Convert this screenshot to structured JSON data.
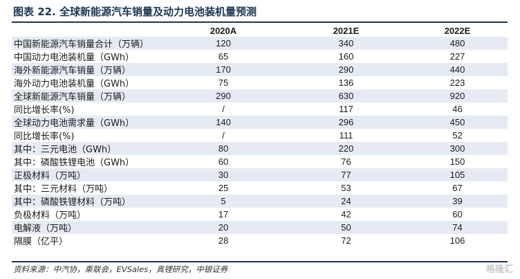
{
  "title": "图表 22. 全球新能源汽车销量及动力电池装机量预测",
  "table": {
    "headers": [
      "",
      "2020A",
      "2021E",
      "2022E"
    ],
    "rows": [
      {
        "label": "中国新能源汽车销量合计（万辆）",
        "values": [
          "120",
          "340",
          "480"
        ]
      },
      {
        "label": "中国动力电池装机量（GWh）",
        "values": [
          "65",
          "160",
          "227"
        ]
      },
      {
        "label": "海外新能源汽车销量（万辆）",
        "values": [
          "170",
          "290",
          "440"
        ]
      },
      {
        "label": "海外动力电池装机量（GWh）",
        "values": [
          "75",
          "136",
          "223"
        ]
      },
      {
        "label": "全球新能源汽车销量（万辆）",
        "values": [
          "290",
          "630",
          "920"
        ]
      },
      {
        "label": "同比增长率(%)",
        "values": [
          "/",
          "117",
          "46"
        ]
      },
      {
        "label": "全球动力电池需求量（GWh）",
        "values": [
          "140",
          "296",
          "450"
        ]
      },
      {
        "label": "同比增长率(%)",
        "values": [
          "/",
          "111",
          "52"
        ]
      },
      {
        "label": "其中：三元电池（GWh）",
        "values": [
          "80",
          "220",
          "300"
        ]
      },
      {
        "label": "其中：磷酸铁锂电池（GWh）",
        "values": [
          "60",
          "76",
          "150"
        ]
      },
      {
        "label": "正极材料（万吨）",
        "values": [
          "30",
          "77",
          "105"
        ]
      },
      {
        "label": "其中：三元材料（万吨）",
        "values": [
          "25",
          "53",
          "67"
        ]
      },
      {
        "label": "其中：磷酸铁锂材料（万吨）",
        "values": [
          "5",
          "24",
          "39"
        ]
      },
      {
        "label": "负极材料（万吨）",
        "values": [
          "17",
          "42",
          "60"
        ]
      },
      {
        "label": "电解液（万吨）",
        "values": [
          "20",
          "50",
          "74"
        ]
      },
      {
        "label": "隔膜（亿平）",
        "values": [
          "28",
          "72",
          "106"
        ]
      }
    ]
  },
  "source": "资料来源：中汽协，乘联会，EVSales，真锂研究，中银证券",
  "watermark": "格隆汇",
  "colors": {
    "title": "#1e3553",
    "rule": "#1e3553",
    "row_band": "#e6ebf3"
  }
}
